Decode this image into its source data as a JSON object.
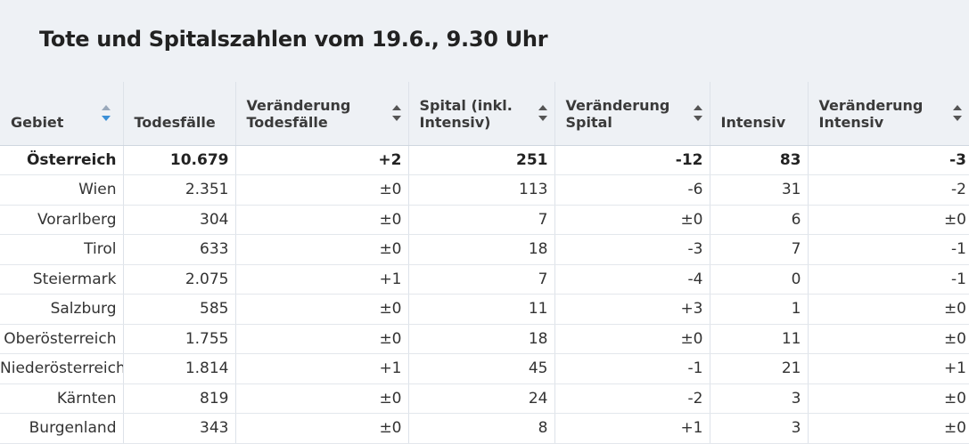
{
  "title": "Tote und Spitalszahlen vom 19.6., 9.30 Uhr",
  "columns": [
    {
      "line1": "Gebiet",
      "line2": ""
    },
    {
      "line1": "Todesfälle",
      "line2": ""
    },
    {
      "line1": "Veränderung",
      "line2": "Todesfälle"
    },
    {
      "line1": "Spital (inkl.",
      "line2": "Intensiv)"
    },
    {
      "line1": "Veränderung",
      "line2": "Spital"
    },
    {
      "line1": "Intensiv",
      "line2": ""
    },
    {
      "line1": "Veränderung",
      "line2": "Intensiv"
    }
  ],
  "sort_active_color": "#3b8fd6",
  "rows": [
    [
      "Österreich",
      "10.679",
      "+2",
      "251",
      "-12",
      "83",
      "-3"
    ],
    [
      "Wien",
      "2.351",
      "±0",
      "113",
      "-6",
      "31",
      "-2"
    ],
    [
      "Vorarlberg",
      "304",
      "±0",
      "7",
      "±0",
      "6",
      "±0"
    ],
    [
      "Tirol",
      "633",
      "±0",
      "18",
      "-3",
      "7",
      "-1"
    ],
    [
      "Steiermark",
      "2.075",
      "+1",
      "7",
      "-4",
      "0",
      "-1"
    ],
    [
      "Salzburg",
      "585",
      "±0",
      "11",
      "+3",
      "1",
      "±0"
    ],
    [
      "Oberösterreich",
      "1.755",
      "±0",
      "18",
      "±0",
      "11",
      "±0"
    ],
    [
      "Niederösterreich",
      "1.814",
      "+1",
      "45",
      "-1",
      "21",
      "+1"
    ],
    [
      "Kärnten",
      "819",
      "±0",
      "24",
      "-2",
      "3",
      "±0"
    ],
    [
      "Burgenland",
      "343",
      "±0",
      "8",
      "+1",
      "3",
      "±0"
    ]
  ]
}
